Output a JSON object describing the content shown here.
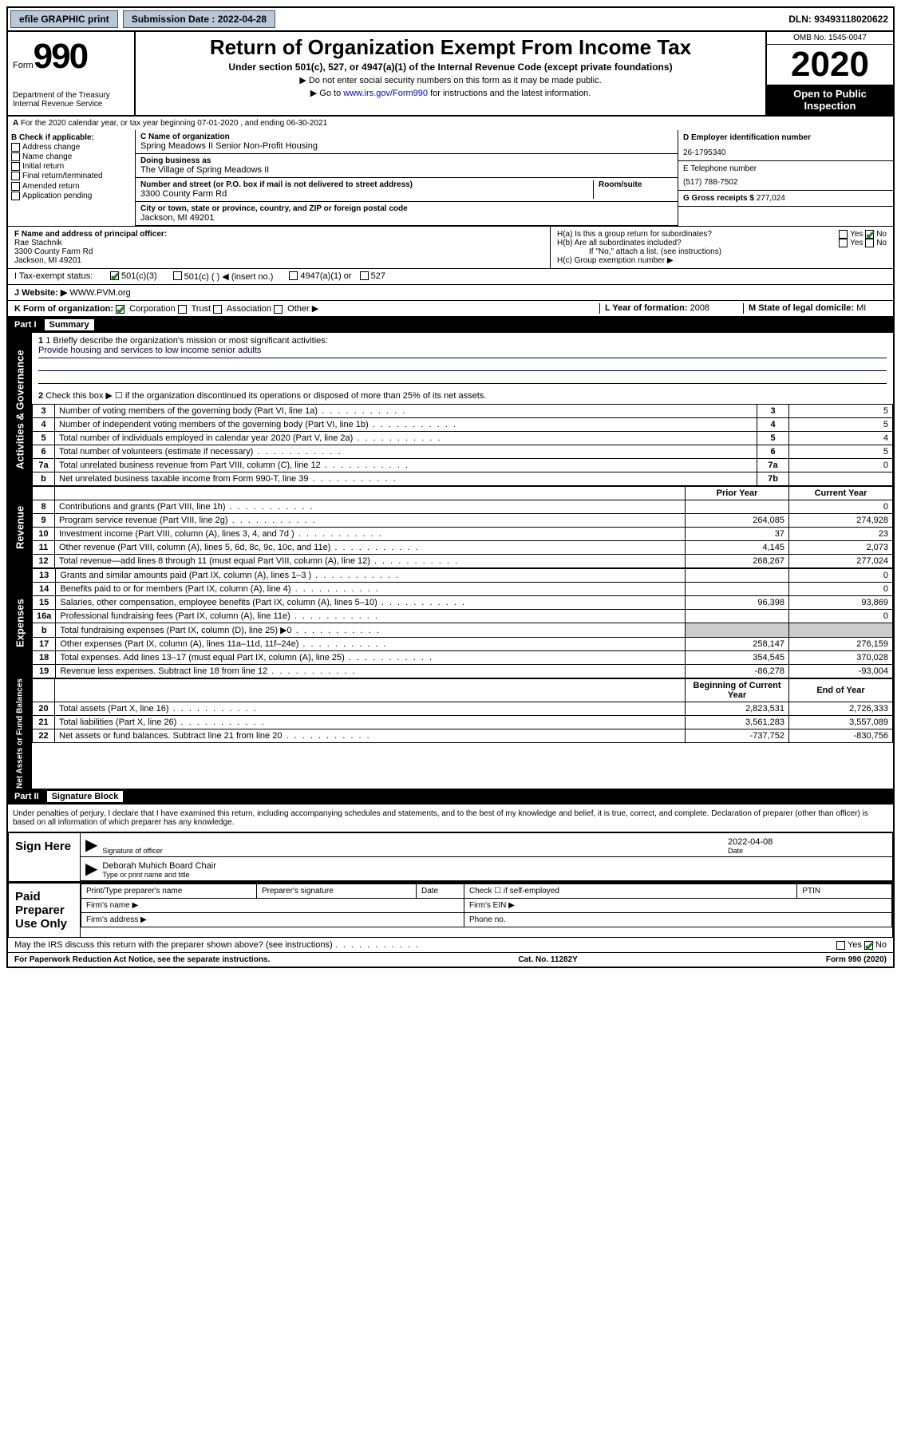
{
  "topbar": {
    "efile": "efile GRAPHIC print",
    "submission_label": "Submission Date : 2022-04-28",
    "dln_label": "DLN: 93493118020622"
  },
  "header": {
    "form_word": "Form",
    "form_num": "990",
    "dept": "Department of the Treasury\nInternal Revenue Service",
    "title": "Return of Organization Exempt From Income Tax",
    "subtitle": "Under section 501(c), 527, or 4947(a)(1) of the Internal Revenue Code (except private foundations)",
    "note1": "▶ Do not enter social security numbers on this form as it may be made public.",
    "note2_pre": "▶ Go to ",
    "note2_link": "www.irs.gov/Form990",
    "note2_post": " for instructions and the latest information.",
    "omb": "OMB No. 1545-0047",
    "year": "2020",
    "inspect": "Open to Public Inspection"
  },
  "sectionA": "For the 2020 calendar year, or tax year beginning 07-01-2020   , and ending 06-30-2021",
  "sectionB": {
    "header": "B Check if applicable:",
    "items": [
      "Address change",
      "Name change",
      "Initial return",
      "Final return/terminated",
      "Amended return",
      "Application pending"
    ]
  },
  "sectionC": {
    "name_label": "C Name of organization",
    "name": "Spring Meadows II Senior Non-Profit Housing",
    "dba_label": "Doing business as",
    "dba": "The Village of Spring Meadows II",
    "street_label": "Number and street (or P.O. box if mail is not delivered to street address)",
    "room_label": "Room/suite",
    "street": "3300 County Farm Rd",
    "city_label": "City or town, state or province, country, and ZIP or foreign postal code",
    "city": "Jackson, MI  49201"
  },
  "sectionD": {
    "label": "D Employer identification number",
    "value": "26-1795340"
  },
  "sectionE": {
    "label": "E Telephone number",
    "value": "(517) 788-7502"
  },
  "sectionG": {
    "label": "G Gross receipts $",
    "value": "277,024"
  },
  "sectionF": {
    "label": "F  Name and address of principal officer:",
    "name": "Rae Stachnik",
    "addr1": "3300 County Farm Rd",
    "addr2": "Jackson, MI  49201"
  },
  "sectionH": {
    "a": "H(a)  Is this a group return for subordinates?",
    "b": "H(b)  Are all subordinates included?",
    "b_note": "If \"No,\" attach a list. (see instructions)",
    "c": "H(c)  Group exemption number ▶"
  },
  "sectionI": {
    "label": "I Tax-exempt status:",
    "opt1": "501(c)(3)",
    "opt2": "501(c) (  ) ◀ (insert no.)",
    "opt3": "4947(a)(1) or",
    "opt4": "527"
  },
  "sectionJ": {
    "label": "J  Website: ▶",
    "value": "WWW.PVM.org"
  },
  "sectionK": {
    "label": "K Form of organization:",
    "opts": [
      "Corporation",
      "Trust",
      "Association",
      "Other ▶"
    ]
  },
  "sectionL": {
    "label": "L Year of formation:",
    "value": "2008"
  },
  "sectionM": {
    "label": "M State of legal domicile:",
    "value": "MI"
  },
  "part1": {
    "label": "Part I",
    "title": "Summary"
  },
  "summary": {
    "sidebar1": "Activities & Governance",
    "sidebar2": "Revenue",
    "sidebar3": "Expenses",
    "sidebar4": "Net Assets or Fund Balances",
    "q1_label": "1  Briefly describe the organization's mission or most significant activities:",
    "q1_value": "Provide housing and services to low income senior adults",
    "q2": "Check this box ▶ ☐ if the organization discontinued its operations or disposed of more than 25% of its net assets.",
    "rows_gov": [
      {
        "n": "3",
        "d": "Number of voting members of the governing body (Part VI, line 1a)",
        "b": "3",
        "v": "5"
      },
      {
        "n": "4",
        "d": "Number of independent voting members of the governing body (Part VI, line 1b)",
        "b": "4",
        "v": "5"
      },
      {
        "n": "5",
        "d": "Total number of individuals employed in calendar year 2020 (Part V, line 2a)",
        "b": "5",
        "v": "4"
      },
      {
        "n": "6",
        "d": "Total number of volunteers (estimate if necessary)",
        "b": "6",
        "v": "5"
      },
      {
        "n": "7a",
        "d": "Total unrelated business revenue from Part VIII, column (C), line 12",
        "b": "7a",
        "v": "0"
      },
      {
        "n": "b",
        "d": "Net unrelated business taxable income from Form 990-T, line 39",
        "b": "7b",
        "v": ""
      }
    ],
    "col_prior": "Prior Year",
    "col_current": "Current Year",
    "rows_rev": [
      {
        "n": "8",
        "d": "Contributions and grants (Part VIII, line 1h)",
        "p": "",
        "c": "0"
      },
      {
        "n": "9",
        "d": "Program service revenue (Part VIII, line 2g)",
        "p": "264,085",
        "c": "274,928"
      },
      {
        "n": "10",
        "d": "Investment income (Part VIII, column (A), lines 3, 4, and 7d )",
        "p": "37",
        "c": "23"
      },
      {
        "n": "11",
        "d": "Other revenue (Part VIII, column (A), lines 5, 6d, 8c, 9c, 10c, and 11e)",
        "p": "4,145",
        "c": "2,073"
      },
      {
        "n": "12",
        "d": "Total revenue—add lines 8 through 11 (must equal Part VIII, column (A), line 12)",
        "p": "268,267",
        "c": "277,024"
      }
    ],
    "rows_exp": [
      {
        "n": "13",
        "d": "Grants and similar amounts paid (Part IX, column (A), lines 1–3 )",
        "p": "",
        "c": "0"
      },
      {
        "n": "14",
        "d": "Benefits paid to or for members (Part IX, column (A), line 4)",
        "p": "",
        "c": "0"
      },
      {
        "n": "15",
        "d": "Salaries, other compensation, employee benefits (Part IX, column (A), lines 5–10)",
        "p": "96,398",
        "c": "93,869"
      },
      {
        "n": "16a",
        "d": "Professional fundraising fees (Part IX, column (A), line 11e)",
        "p": "",
        "c": "0"
      },
      {
        "n": "b",
        "d": "Total fundraising expenses (Part IX, column (D), line 25) ▶0",
        "p": "GREY",
        "c": "GREY"
      },
      {
        "n": "17",
        "d": "Other expenses (Part IX, column (A), lines 11a–11d, 11f–24e)",
        "p": "258,147",
        "c": "276,159"
      },
      {
        "n": "18",
        "d": "Total expenses. Add lines 13–17 (must equal Part IX, column (A), line 25)",
        "p": "354,545",
        "c": "370,028"
      },
      {
        "n": "19",
        "d": "Revenue less expenses. Subtract line 18 from line 12",
        "p": "-86,278",
        "c": "-93,004"
      }
    ],
    "col_begin": "Beginning of Current Year",
    "col_end": "End of Year",
    "rows_net": [
      {
        "n": "20",
        "d": "Total assets (Part X, line 16)",
        "p": "2,823,531",
        "c": "2,726,333"
      },
      {
        "n": "21",
        "d": "Total liabilities (Part X, line 26)",
        "p": "3,561,283",
        "c": "3,557,089"
      },
      {
        "n": "22",
        "d": "Net assets or fund balances. Subtract line 21 from line 20",
        "p": "-737,752",
        "c": "-830,756"
      }
    ]
  },
  "part2": {
    "label": "Part II",
    "title": "Signature Block"
  },
  "perjury": "Under penalties of perjury, I declare that I have examined this return, including accompanying schedules and statements, and to the best of my knowledge and belief, it is true, correct, and complete. Declaration of preparer (other than officer) is based on all information of which preparer has any knowledge.",
  "sign": {
    "here": "Sign Here",
    "sig_officer": "Signature of officer",
    "date_label": "Date",
    "date": "2022-04-08",
    "name": "Deborah Muhich  Board Chair",
    "name_sub": "Type or print name and title"
  },
  "paid": {
    "label": "Paid Preparer Use Only",
    "h1": "Print/Type preparer's name",
    "h2": "Preparer's signature",
    "h3": "Date",
    "h4_pre": "Check ☐ if self-employed",
    "h5": "PTIN",
    "firm_name": "Firm's name   ▶",
    "firm_ein": "Firm's EIN ▶",
    "firm_addr": "Firm's address ▶",
    "phone": "Phone no."
  },
  "discuss": "May the IRS discuss this return with the preparer shown above? (see instructions)",
  "footer": {
    "left": "For Paperwork Reduction Act Notice, see the separate instructions.",
    "mid": "Cat. No. 11282Y",
    "right": "Form 990 (2020)"
  }
}
